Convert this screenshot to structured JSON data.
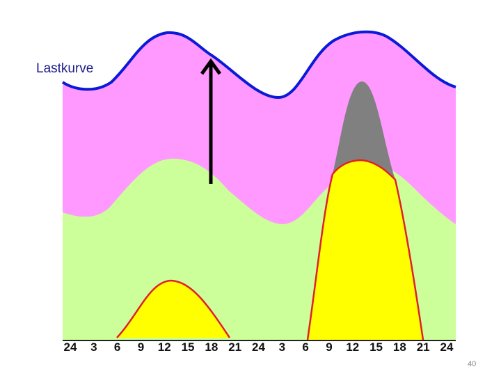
{
  "label": "Lastkurve",
  "x_ticks": [
    "24",
    "3",
    "6",
    "9",
    "12",
    "15",
    "18",
    "21",
    "24",
    "3",
    "6",
    "9",
    "12",
    "15",
    "18",
    "21",
    "24"
  ],
  "slide_number": "40",
  "colors": {
    "load_fill": "#ff99ff",
    "load_line": "#0a1ad8",
    "base_fill": "#ccff99",
    "solar_fill": "#ffff00",
    "solar_line": "#e0202a",
    "peak_fill": "#808080",
    "arrow": "#000000"
  }
}
